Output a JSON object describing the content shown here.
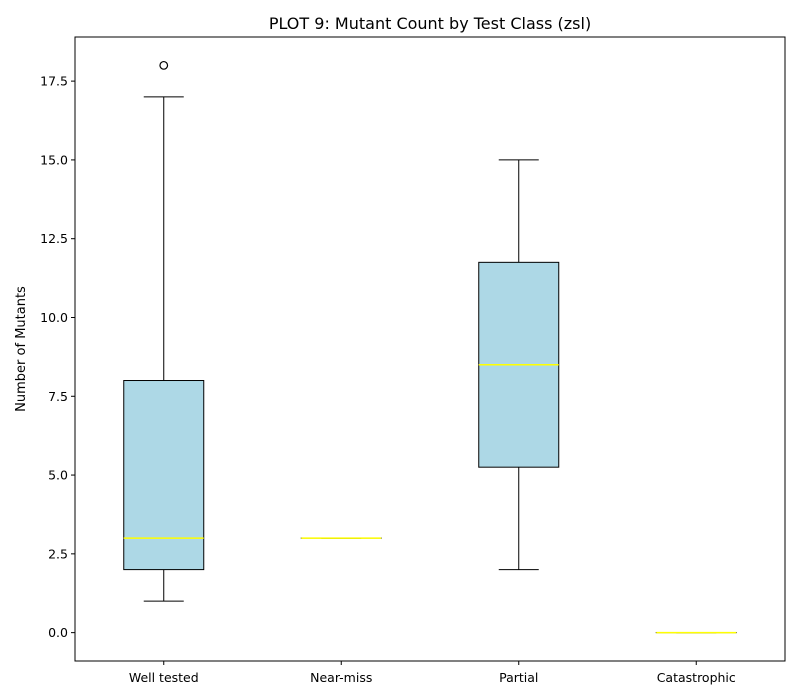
{
  "chart_data": {
    "type": "box",
    "title": "PLOT 9: Mutant Count by Test Class (zsl)",
    "xlabel": "",
    "ylabel": "Number of Mutants",
    "categories": [
      "Well tested",
      "Near-miss",
      "Partial",
      "Catastrophic"
    ],
    "boxes": [
      {
        "category": "Well tested",
        "whisker_low": 1,
        "q1": 2,
        "median": 3,
        "q3": 8,
        "whisker_high": 17,
        "outliers": [
          18
        ]
      },
      {
        "category": "Near-miss",
        "whisker_low": 3,
        "q1": 3,
        "median": 3,
        "q3": 3,
        "whisker_high": 3,
        "outliers": []
      },
      {
        "category": "Partial",
        "whisker_low": 2,
        "q1": 5.25,
        "median": 8.5,
        "q3": 11.75,
        "whisker_high": 15,
        "outliers": []
      },
      {
        "category": "Catastrophic",
        "whisker_low": 0,
        "q1": 0,
        "median": 0,
        "q3": 0,
        "whisker_high": 0,
        "outliers": []
      }
    ],
    "ylim": [
      -0.9,
      18.9
    ],
    "yticks": [
      0.0,
      2.5,
      5.0,
      7.5,
      10.0,
      12.5,
      15.0,
      17.5
    ],
    "ytick_labels": [
      "0.0",
      "2.5",
      "5.0",
      "7.5",
      "10.0",
      "12.5",
      "15.0",
      "17.5"
    ],
    "grid": false,
    "colors": {
      "box_fill": "#add8e6",
      "median": "#ffff00",
      "stroke": "#000000"
    }
  }
}
